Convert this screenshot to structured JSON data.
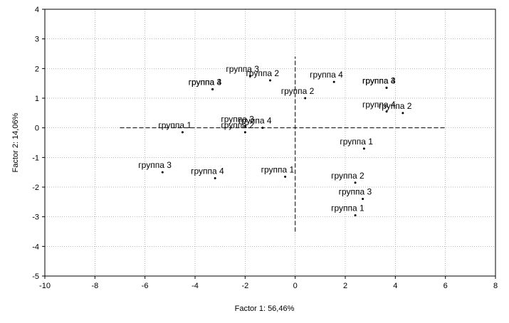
{
  "chart_data": {
    "type": "scatter",
    "title": "",
    "xlabel": "Factor 1: 56,46%",
    "ylabel": "Factor 2: 14,06%",
    "xlim": [
      -10,
      8
    ],
    "ylim": [
      -5,
      4
    ],
    "x_ticks": [
      -10,
      -8,
      -6,
      -4,
      -2,
      0,
      2,
      4,
      6,
      8
    ],
    "y_ticks": [
      -5,
      -4,
      -3,
      -2,
      -1,
      0,
      1,
      2,
      3,
      4
    ],
    "grid": true,
    "reference_lines": {
      "horizontal": {
        "y": 0,
        "x_from": -7,
        "x_to": 6
      },
      "vertical": {
        "x": 0,
        "y_from": -3.5,
        "y_to": 2.4
      }
    },
    "points": [
      {
        "label": "группа 3",
        "x": -3.3,
        "y": 1.3
      },
      {
        "label": "группа 4",
        "x": -3.3,
        "y": 1.3
      },
      {
        "label": "группа 3",
        "x": -1.8,
        "y": 1.75
      },
      {
        "label": "группа 2",
        "x": -1.0,
        "y": 1.6
      },
      {
        "label": "группа 2",
        "x": 0.4,
        "y": 1.0
      },
      {
        "label": "группа 4",
        "x": 1.55,
        "y": 1.55
      },
      {
        "label": "группа 3",
        "x": 3.65,
        "y": 1.35
      },
      {
        "label": "группа 4",
        "x": 3.65,
        "y": 1.35
      },
      {
        "label": "группа 4",
        "x": 3.65,
        "y": 0.55
      },
      {
        "label": "группа 2",
        "x": 4.3,
        "y": 0.5
      },
      {
        "label": "группа 3",
        "x": -2.0,
        "y": 0.05
      },
      {
        "label": "группа 4",
        "x": -1.3,
        "y": 0.0
      },
      {
        "label": "группа 2",
        "x": -2.0,
        "y": -0.15
      },
      {
        "label": "группа 1",
        "x": -4.5,
        "y": -0.15
      },
      {
        "label": "группа 1",
        "x": 2.75,
        "y": -0.7
      },
      {
        "label": "группа 3",
        "x": -5.3,
        "y": -1.5
      },
      {
        "label": "группа 4",
        "x": -3.2,
        "y": -1.7
      },
      {
        "label": "группа 1",
        "x": -0.4,
        "y": -1.65
      },
      {
        "label": "группа 2",
        "x": 2.4,
        "y": -1.85
      },
      {
        "label": "группа 3",
        "x": 2.7,
        "y": -2.4
      },
      {
        "label": "группа 1",
        "x": 2.4,
        "y": -2.95
      }
    ]
  }
}
